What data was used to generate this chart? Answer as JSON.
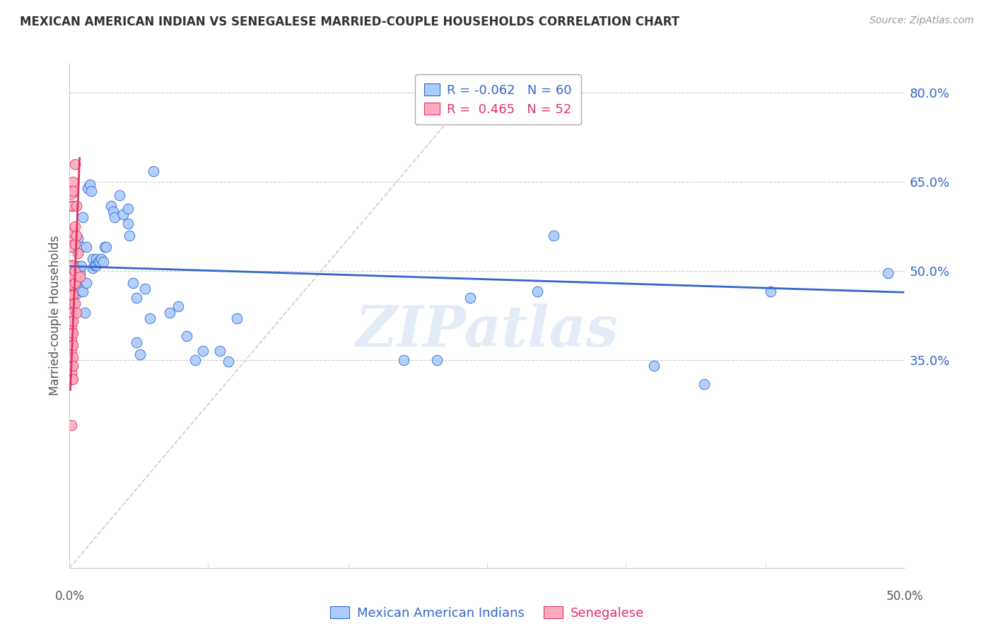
{
  "title": "MEXICAN AMERICAN INDIAN VS SENEGALESE MARRIED-COUPLE HOUSEHOLDS CORRELATION CHART",
  "source": "Source: ZipAtlas.com",
  "ylabel": "Married-couple Households",
  "xmin": 0.0,
  "xmax": 0.5,
  "ymin": 0.0,
  "ymax": 0.85,
  "watermark": "ZIPatlas",
  "legend_blue_r": "-0.062",
  "legend_blue_n": "60",
  "legend_pink_r": "0.465",
  "legend_pink_n": "52",
  "blue_color": "#aaccff",
  "pink_color": "#ffaabb",
  "line_blue_color": "#3366cc",
  "line_pink_color": "#dd3366",
  "diag_line_color": "#cccccc",
  "ytick_vals": [
    0.35,
    0.5,
    0.65,
    0.8
  ],
  "ytick_labels": [
    "35.0%",
    "50.0%",
    "65.0%",
    "80.0%"
  ],
  "xtick_vals": [
    0.0,
    0.083,
    0.167,
    0.25,
    0.333,
    0.417,
    0.5
  ],
  "blue_scatter": [
    [
      0.004,
      0.497
    ],
    [
      0.004,
      0.462
    ],
    [
      0.005,
      0.508
    ],
    [
      0.005,
      0.478
    ],
    [
      0.005,
      0.555
    ],
    [
      0.006,
      0.497
    ],
    [
      0.006,
      0.468
    ],
    [
      0.007,
      0.508
    ],
    [
      0.007,
      0.54
    ],
    [
      0.008,
      0.59
    ],
    [
      0.008,
      0.465
    ],
    [
      0.009,
      0.43
    ],
    [
      0.01,
      0.48
    ],
    [
      0.01,
      0.54
    ],
    [
      0.011,
      0.64
    ],
    [
      0.012,
      0.645
    ],
    [
      0.013,
      0.635
    ],
    [
      0.014,
      0.505
    ],
    [
      0.014,
      0.52
    ],
    [
      0.015,
      0.51
    ],
    [
      0.016,
      0.52
    ],
    [
      0.016,
      0.51
    ],
    [
      0.017,
      0.515
    ],
    [
      0.018,
      0.515
    ],
    [
      0.019,
      0.52
    ],
    [
      0.02,
      0.515
    ],
    [
      0.021,
      0.54
    ],
    [
      0.022,
      0.54
    ],
    [
      0.025,
      0.61
    ],
    [
      0.026,
      0.6
    ],
    [
      0.027,
      0.59
    ],
    [
      0.03,
      0.628
    ],
    [
      0.032,
      0.595
    ],
    [
      0.035,
      0.605
    ],
    [
      0.035,
      0.58
    ],
    [
      0.036,
      0.56
    ],
    [
      0.038,
      0.48
    ],
    [
      0.04,
      0.455
    ],
    [
      0.04,
      0.38
    ],
    [
      0.042,
      0.36
    ],
    [
      0.045,
      0.47
    ],
    [
      0.048,
      0.42
    ],
    [
      0.05,
      0.668
    ],
    [
      0.06,
      0.43
    ],
    [
      0.065,
      0.44
    ],
    [
      0.07,
      0.39
    ],
    [
      0.075,
      0.35
    ],
    [
      0.08,
      0.365
    ],
    [
      0.09,
      0.365
    ],
    [
      0.095,
      0.348
    ],
    [
      0.1,
      0.42
    ],
    [
      0.2,
      0.35
    ],
    [
      0.22,
      0.35
    ],
    [
      0.24,
      0.455
    ],
    [
      0.28,
      0.465
    ],
    [
      0.29,
      0.56
    ],
    [
      0.35,
      0.34
    ],
    [
      0.38,
      0.31
    ],
    [
      0.42,
      0.465
    ],
    [
      0.49,
      0.497
    ]
  ],
  "pink_scatter": [
    [
      0.001,
      0.63
    ],
    [
      0.001,
      0.61
    ],
    [
      0.001,
      0.56
    ],
    [
      0.001,
      0.54
    ],
    [
      0.001,
      0.51
    ],
    [
      0.001,
      0.5
    ],
    [
      0.001,
      0.49
    ],
    [
      0.001,
      0.48
    ],
    [
      0.001,
      0.47
    ],
    [
      0.001,
      0.46
    ],
    [
      0.001,
      0.45
    ],
    [
      0.001,
      0.44
    ],
    [
      0.001,
      0.43
    ],
    [
      0.001,
      0.42
    ],
    [
      0.001,
      0.415
    ],
    [
      0.001,
      0.405
    ],
    [
      0.001,
      0.395
    ],
    [
      0.001,
      0.385
    ],
    [
      0.001,
      0.375
    ],
    [
      0.001,
      0.365
    ],
    [
      0.001,
      0.35
    ],
    [
      0.001,
      0.34
    ],
    [
      0.001,
      0.328
    ],
    [
      0.001,
      0.318
    ],
    [
      0.001,
      0.24
    ],
    [
      0.002,
      0.65
    ],
    [
      0.002,
      0.635
    ],
    [
      0.002,
      0.61
    ],
    [
      0.002,
      0.565
    ],
    [
      0.002,
      0.51
    ],
    [
      0.002,
      0.49
    ],
    [
      0.002,
      0.478
    ],
    [
      0.002,
      0.46
    ],
    [
      0.002,
      0.445
    ],
    [
      0.002,
      0.43
    ],
    [
      0.002,
      0.415
    ],
    [
      0.002,
      0.395
    ],
    [
      0.002,
      0.375
    ],
    [
      0.002,
      0.355
    ],
    [
      0.002,
      0.34
    ],
    [
      0.002,
      0.318
    ],
    [
      0.003,
      0.68
    ],
    [
      0.003,
      0.575
    ],
    [
      0.003,
      0.545
    ],
    [
      0.003,
      0.5
    ],
    [
      0.003,
      0.48
    ],
    [
      0.003,
      0.445
    ],
    [
      0.004,
      0.61
    ],
    [
      0.004,
      0.56
    ],
    [
      0.004,
      0.43
    ],
    [
      0.005,
      0.53
    ],
    [
      0.006,
      0.49
    ]
  ],
  "blue_trend_x": [
    0.0,
    0.5
  ],
  "blue_trend_y": [
    0.508,
    0.464
  ],
  "pink_trend_x": [
    0.0005,
    0.006
  ],
  "pink_trend_y": [
    0.3,
    0.69
  ],
  "diag_line_x": [
    0.0,
    0.25
  ],
  "diag_line_y": [
    0.0,
    0.83
  ]
}
